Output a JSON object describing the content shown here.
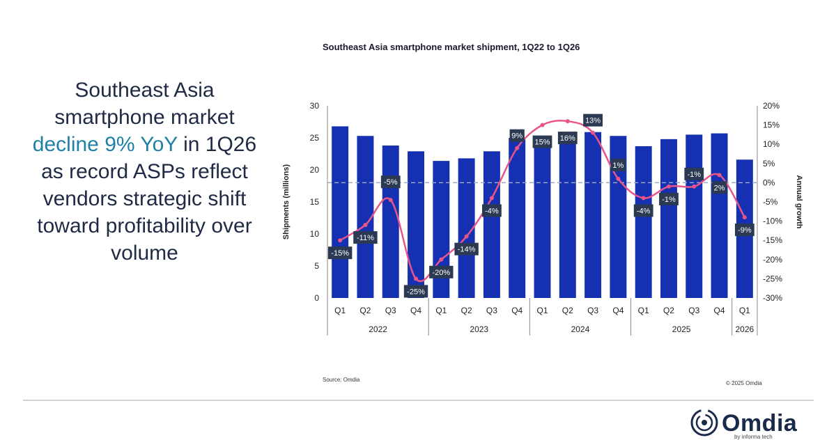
{
  "headline": {
    "line1": "Southeast Asia",
    "line2": "smartphone market",
    "line3_highlight": "decline 9% YoY",
    "line3_rest": " in 1Q26",
    "line4": "as record ASPs reflect",
    "line5": "vendors strategic shift",
    "line6": "toward profitability over",
    "line7": "volume"
  },
  "colors": {
    "bar": "#1530b0",
    "line": "#e8558a",
    "label_bg": "#2b3a52",
    "highlight": "#1f7fa6"
  },
  "chart_data": {
    "type": "bar",
    "title": "Southeast Asia smartphone market shipment, 1Q22 to 1Q26",
    "ylabel": "Shipments (millions)",
    "y2label": "Annual growth",
    "ylim": [
      0,
      30
    ],
    "yticks": [
      "0",
      "5",
      "10",
      "15",
      "20",
      "25",
      "30"
    ],
    "y2lim": [
      -30,
      20
    ],
    "y2ticks": [
      "-30%",
      "-25%",
      "-20%",
      "-15%",
      "-10%",
      "-5%",
      "0%",
      "5%",
      "10%",
      "15%",
      "20%"
    ],
    "categories": [
      "Q1",
      "Q2",
      "Q3",
      "Q4",
      "Q1",
      "Q2",
      "Q3",
      "Q4",
      "Q1",
      "Q2",
      "Q3",
      "Q4",
      "Q1",
      "Q2",
      "Q3",
      "Q4",
      "Q1"
    ],
    "groups": [
      {
        "label": "2022",
        "count": 4
      },
      {
        "label": "2023",
        "count": 4
      },
      {
        "label": "2024",
        "count": 4
      },
      {
        "label": "2025",
        "count": 4
      },
      {
        "label": "2026",
        "count": 1
      }
    ],
    "series": [
      {
        "values": [
          26.8,
          25.3,
          23.8,
          22.9,
          21.4,
          21.8,
          22.9,
          25.0,
          24.8,
          25.1,
          25.9,
          25.3,
          23.7,
          24.8,
          25.5,
          25.7,
          21.6
        ]
      },
      {
        "values": [
          -15,
          -11,
          -4.5,
          -25,
          -20,
          -14,
          -4,
          9,
          15,
          16,
          13,
          1,
          -4,
          -1,
          -1,
          2,
          -9
        ],
        "labels": [
          "-15%",
          "-11%",
          "-5%",
          "-25%",
          "-20%",
          "-14%",
          "-4%",
          "9%",
          "15%",
          "16%",
          "13%",
          "1%",
          "-4%",
          "-1%",
          "-1%",
          "2%",
          "-9%"
        ]
      }
    ],
    "grid": false
  },
  "source": "Source: Omdia",
  "copyright": "© 2025 Omdia",
  "logo": {
    "name": "Omdia",
    "tagline": "by informa tech"
  }
}
